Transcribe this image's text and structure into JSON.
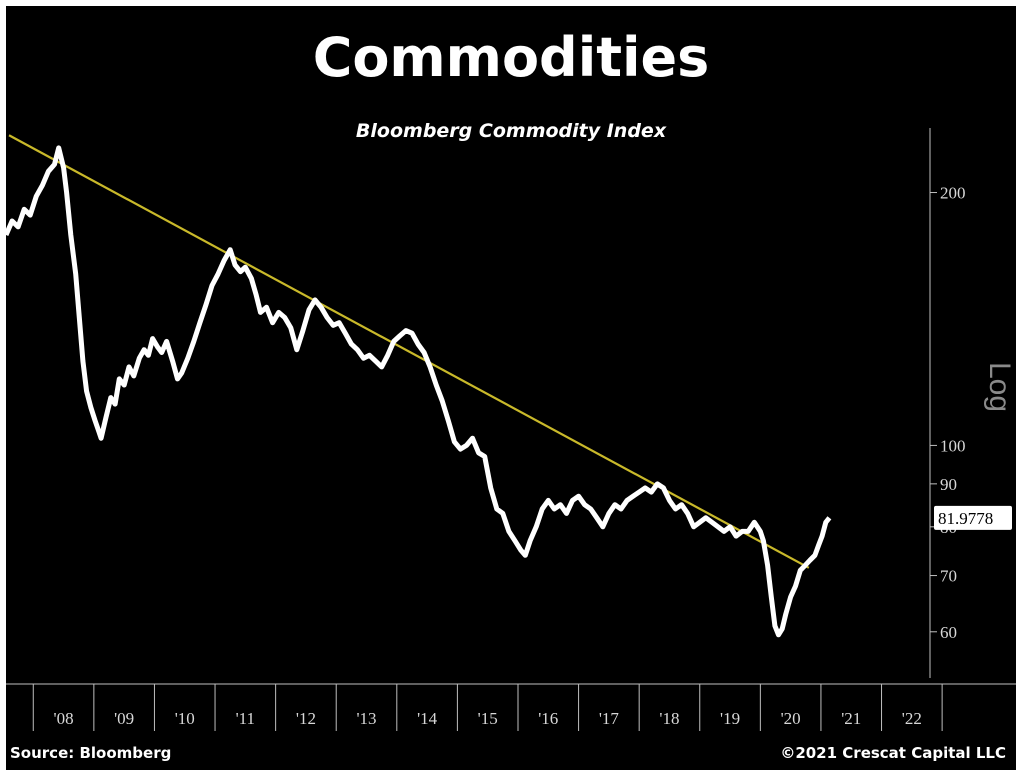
{
  "header": {
    "title": "Commodities",
    "subtitle": "Bloomberg Commodity Index"
  },
  "footer": {
    "source": "Source: Bloomberg",
    "copyright": "©2021 Crescat Capital LLC"
  },
  "chart_data": {
    "type": "line",
    "title": "Commodities",
    "subtitle": "Bloomberg Commodity Index",
    "y_scale": "log",
    "y_scale_label": "Log",
    "ylim": [
      52,
      240
    ],
    "xlim": [
      2007.55,
      2022.8
    ],
    "x_ticks": [
      "'08",
      "'09",
      "'10",
      "'11",
      "'12",
      "'13",
      "'14",
      "'15",
      "'16",
      "'17",
      "'18",
      "'19",
      "'20",
      "'21",
      "'22"
    ],
    "y_ticks": [
      60,
      70,
      80,
      90,
      100,
      200
    ],
    "y_tick_labels": [
      "60",
      "70",
      "80",
      "90",
      "100",
      "200"
    ],
    "last_value_label": "81.9778",
    "grid": false,
    "colors": {
      "background": "#000000",
      "series": "#ffffff",
      "trendline": "#c9b92a",
      "label_box": "#ffffff"
    },
    "series": [
      {
        "values": [
          [
            2007.55,
            178
          ],
          [
            2007.65,
            185
          ],
          [
            2007.75,
            182
          ],
          [
            2007.85,
            191
          ],
          [
            2007.95,
            188
          ],
          [
            2008.05,
            198
          ],
          [
            2008.15,
            204
          ],
          [
            2008.25,
            212
          ],
          [
            2008.35,
            216
          ],
          [
            2008.42,
            226
          ],
          [
            2008.5,
            214
          ],
          [
            2008.55,
            200
          ],
          [
            2008.62,
            178
          ],
          [
            2008.7,
            160
          ],
          [
            2008.76,
            142
          ],
          [
            2008.82,
            126
          ],
          [
            2008.88,
            116
          ],
          [
            2008.95,
            111
          ],
          [
            2009.02,
            107
          ],
          [
            2009.08,
            104
          ],
          [
            2009.12,
            102
          ],
          [
            2009.2,
            108
          ],
          [
            2009.28,
            114
          ],
          [
            2009.35,
            112
          ],
          [
            2009.42,
            120
          ],
          [
            2009.5,
            118
          ],
          [
            2009.58,
            124
          ],
          [
            2009.66,
            121
          ],
          [
            2009.75,
            127
          ],
          [
            2009.83,
            130
          ],
          [
            2009.9,
            128
          ],
          [
            2009.97,
            134
          ],
          [
            2010.05,
            131
          ],
          [
            2010.12,
            129
          ],
          [
            2010.2,
            133
          ],
          [
            2010.3,
            126
          ],
          [
            2010.38,
            120
          ],
          [
            2010.45,
            122
          ],
          [
            2010.55,
            127
          ],
          [
            2010.65,
            133
          ],
          [
            2010.75,
            140
          ],
          [
            2010.85,
            147
          ],
          [
            2010.95,
            155
          ],
          [
            2011.05,
            160
          ],
          [
            2011.15,
            166
          ],
          [
            2011.25,
            171
          ],
          [
            2011.33,
            164
          ],
          [
            2011.42,
            161
          ],
          [
            2011.5,
            163
          ],
          [
            2011.6,
            158
          ],
          [
            2011.68,
            151
          ],
          [
            2011.75,
            144
          ],
          [
            2011.85,
            146
          ],
          [
            2011.95,
            140
          ],
          [
            2012.05,
            144
          ],
          [
            2012.15,
            142
          ],
          [
            2012.25,
            138
          ],
          [
            2012.35,
            130
          ],
          [
            2012.45,
            137
          ],
          [
            2012.55,
            145
          ],
          [
            2012.65,
            149
          ],
          [
            2012.75,
            146
          ],
          [
            2012.85,
            142
          ],
          [
            2012.95,
            139
          ],
          [
            2013.05,
            140
          ],
          [
            2013.15,
            136
          ],
          [
            2013.25,
            132
          ],
          [
            2013.35,
            130
          ],
          [
            2013.45,
            127
          ],
          [
            2013.55,
            128
          ],
          [
            2013.65,
            126
          ],
          [
            2013.75,
            124
          ],
          [
            2013.85,
            128
          ],
          [
            2013.95,
            133
          ],
          [
            2014.05,
            135
          ],
          [
            2014.15,
            137
          ],
          [
            2014.25,
            136
          ],
          [
            2014.35,
            132
          ],
          [
            2014.45,
            129
          ],
          [
            2014.55,
            124
          ],
          [
            2014.65,
            118
          ],
          [
            2014.75,
            113
          ],
          [
            2014.85,
            107
          ],
          [
            2014.95,
            101
          ],
          [
            2015.05,
            99
          ],
          [
            2015.15,
            100
          ],
          [
            2015.25,
            102
          ],
          [
            2015.35,
            98
          ],
          [
            2015.45,
            97
          ],
          [
            2015.55,
            89
          ],
          [
            2015.65,
            84
          ],
          [
            2015.75,
            83
          ],
          [
            2015.85,
            79
          ],
          [
            2015.95,
            77
          ],
          [
            2016.05,
            75
          ],
          [
            2016.12,
            74
          ],
          [
            2016.2,
            77
          ],
          [
            2016.3,
            80
          ],
          [
            2016.4,
            84
          ],
          [
            2016.5,
            86
          ],
          [
            2016.6,
            84
          ],
          [
            2016.7,
            85
          ],
          [
            2016.8,
            83
          ],
          [
            2016.9,
            86
          ],
          [
            2017.0,
            87
          ],
          [
            2017.1,
            85
          ],
          [
            2017.2,
            84
          ],
          [
            2017.3,
            82
          ],
          [
            2017.4,
            80
          ],
          [
            2017.5,
            83
          ],
          [
            2017.6,
            85
          ],
          [
            2017.7,
            84
          ],
          [
            2017.8,
            86
          ],
          [
            2017.9,
            87
          ],
          [
            2018.0,
            88
          ],
          [
            2018.1,
            89
          ],
          [
            2018.2,
            88
          ],
          [
            2018.3,
            90
          ],
          [
            2018.4,
            89
          ],
          [
            2018.5,
            86
          ],
          [
            2018.6,
            84
          ],
          [
            2018.7,
            85
          ],
          [
            2018.8,
            83
          ],
          [
            2018.9,
            80
          ],
          [
            2019.0,
            81
          ],
          [
            2019.1,
            82
          ],
          [
            2019.2,
            81
          ],
          [
            2019.3,
            80
          ],
          [
            2019.4,
            79
          ],
          [
            2019.5,
            80
          ],
          [
            2019.6,
            78
          ],
          [
            2019.7,
            79
          ],
          [
            2019.8,
            79
          ],
          [
            2019.9,
            81
          ],
          [
            2020.0,
            79
          ],
          [
            2020.05,
            77
          ],
          [
            2020.12,
            72
          ],
          [
            2020.18,
            66
          ],
          [
            2020.24,
            61
          ],
          [
            2020.3,
            59.5
          ],
          [
            2020.36,
            60.5
          ],
          [
            2020.42,
            63
          ],
          [
            2020.5,
            66
          ],
          [
            2020.58,
            68
          ],
          [
            2020.66,
            71
          ],
          [
            2020.74,
            72
          ],
          [
            2020.82,
            73
          ],
          [
            2020.9,
            74
          ],
          [
            2020.96,
            76
          ],
          [
            2021.02,
            78
          ],
          [
            2021.08,
            81
          ],
          [
            2021.14,
            82
          ]
        ]
      }
    ],
    "trendline": [
      [
        2007.6,
        234
      ],
      [
        2020.8,
        71.5
      ]
    ]
  }
}
